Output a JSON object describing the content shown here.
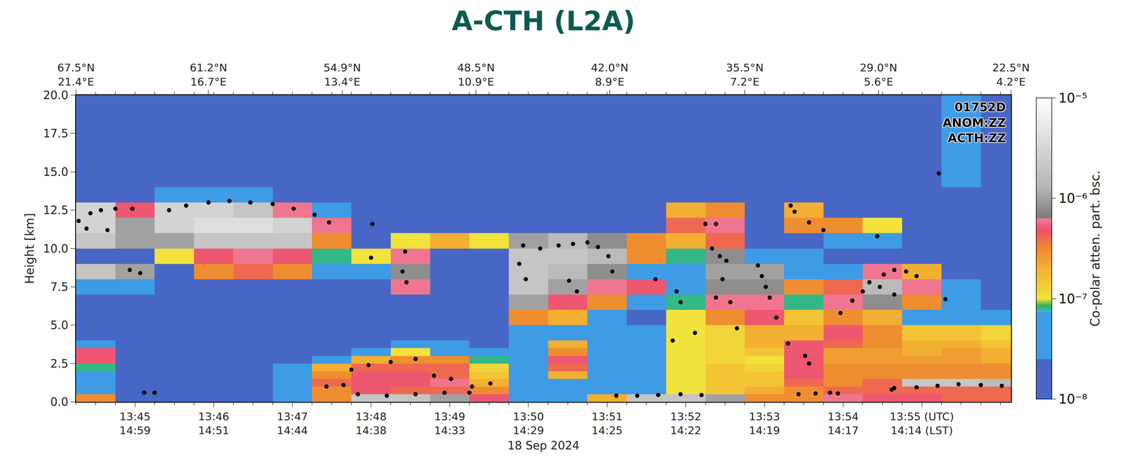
{
  "chart_data": {
    "type": "heatmap",
    "title": "A-CTH (L2A)",
    "annotations": [
      "01752D",
      "ANOM:ZZ",
      "ACTH:ZZ"
    ],
    "xlabel": "18 Sep 2024",
    "ylabel": "Height [km]",
    "xlim": [
      "2024-09-18 13:44:15",
      "2024-09-18 13:56:08"
    ],
    "xticks": [
      {
        "value": "2024-09-18 13:45:00",
        "label": "13:45\n14:59"
      },
      {
        "value": "2024-09-18 13:46:00",
        "label": "13:46\n14:51"
      },
      {
        "value": "2024-09-18 13:47:00",
        "label": "13:47\n14:44"
      },
      {
        "value": "2024-09-18 13:48:00",
        "label": "13:48\n14:38"
      },
      {
        "value": "2024-09-18 13:49:00",
        "label": "13:49\n14:33"
      },
      {
        "value": "2024-09-18 13:50:00",
        "label": "13:50\n14:29"
      },
      {
        "value": "2024-09-18 13:51:00",
        "label": "13:51\n14:25"
      },
      {
        "value": "2024-09-18 13:52:00",
        "label": "13:52\n14:22"
      },
      {
        "value": "2024-09-18 13:53:00",
        "label": "13:53\n14:19"
      },
      {
        "value": "2024-09-18 13:54:00",
        "label": "13:54\n14:17"
      },
      {
        "value": "2024-09-18 13:55:00",
        "label": "13:55 (UTC)\n14:14 (LST)"
      }
    ],
    "top_xticks": [
      {
        "value": "2024-09-18 13:44:15",
        "label": "67.5°N\n21.4°E"
      },
      {
        "value": "2024-09-18 13:45:56",
        "label": "61.2°N\n16.7°E"
      },
      {
        "value": "2024-09-18 13:47:38",
        "label": "54.9°N\n13.4°E"
      },
      {
        "value": "2024-09-18 13:49:20",
        "label": "48.5°N\n10.9°E"
      },
      {
        "value": "2024-09-18 13:51:02",
        "label": "42.0°N\n8.9°E"
      },
      {
        "value": "2024-09-18 13:52:45",
        "label": "35.5°N\n7.2°E"
      },
      {
        "value": "2024-09-18 13:54:27",
        "label": "29.0°N\n5.6°E"
      },
      {
        "value": "2024-09-18 13:56:08",
        "label": "22.5°N\n4.2°E"
      }
    ],
    "ylim": [
      0,
      20
    ],
    "yticks": [
      {
        "value": 0,
        "label": "0.0"
      },
      {
        "value": 2.5,
        "label": "2.5"
      },
      {
        "value": 5,
        "label": "5.0"
      },
      {
        "value": 7.5,
        "label": "7.5"
      },
      {
        "value": 10,
        "label": "10.0"
      },
      {
        "value": 12.5,
        "label": "12.5"
      },
      {
        "value": 15,
        "label": "15.0"
      },
      {
        "value": 17.5,
        "label": "17.5"
      },
      {
        "value": 20,
        "label": "20.0"
      }
    ],
    "cells": {
      "x_edges": [
        "2024-09-18 13:44:15",
        "2024-09-18 13:44:45",
        "2024-09-18 13:45:15",
        "2024-09-18 13:45:45",
        "2024-09-18 13:46:15",
        "2024-09-18 13:46:45",
        "2024-09-18 13:47:15",
        "2024-09-18 13:47:45",
        "2024-09-18 13:48:15",
        "2024-09-18 13:48:45",
        "2024-09-18 13:49:15",
        "2024-09-18 13:49:45",
        "2024-09-18 13:50:15",
        "2024-09-18 13:50:45",
        "2024-09-18 13:51:15",
        "2024-09-18 13:51:45",
        "2024-09-18 13:52:15",
        "2024-09-18 13:52:45",
        "2024-09-18 13:53:15",
        "2024-09-18 13:53:45",
        "2024-09-18 13:54:15",
        "2024-09-18 13:54:45",
        "2024-09-18 13:55:15",
        "2024-09-18 13:55:45",
        "2024-09-18 13:56:15"
      ],
      "y_edges": [
        0,
        0.5,
        1,
        1.5,
        2,
        2.5,
        3,
        3.5,
        4,
        5,
        6,
        7,
        8,
        9,
        10,
        11,
        12,
        13,
        14,
        20
      ],
      "z": [
        [
          3e-07,
          2e-08,
          2e-08,
          2e-08,
          2e-08,
          4e-08,
          3e-07,
          2e-06,
          2e-06,
          1e-06,
          5e-07,
          3e-08,
          3e-08,
          2e-07,
          2e-06,
          2e-06,
          1e-06,
          3e-07,
          3e-07,
          6e-07,
          5e-07,
          5e-07,
          4e-07,
          4e-07
        ],
        [
          4e-08,
          2e-08,
          2e-08,
          2e-08,
          2e-08,
          4e-08,
          3e-07,
          5e-07,
          4e-07,
          4e-07,
          3e-07,
          3e-08,
          3e-08,
          4e-08,
          6e-08,
          1e-07,
          1.5e-07,
          2e-07,
          3e-07,
          4e-07,
          4e-07,
          4e-07,
          4e-07,
          4e-07
        ],
        [
          3e-08,
          2e-08,
          2e-08,
          2e-08,
          2e-08,
          3e-08,
          4e-07,
          5e-07,
          5e-07,
          6e-07,
          2e-07,
          3e-08,
          3e-08,
          3e-08,
          5e-08,
          1e-07,
          1.5e-07,
          1.5e-07,
          4e-07,
          3e-07,
          4e-07,
          2e-06,
          2e-06,
          1.5e-06
        ],
        [
          3e-08,
          2e-08,
          2e-08,
          2e-08,
          2e-08,
          3e-08,
          3e-07,
          5e-07,
          5e-07,
          4e-07,
          1.5e-07,
          3e-08,
          2e-07,
          3e-08,
          4e-08,
          1e-07,
          1.5e-07,
          1.5e-07,
          5e-07,
          3e-07,
          3e-07,
          3e-07,
          3e-07,
          3e-07
        ],
        [
          8e-08,
          2e-08,
          2e-08,
          2e-08,
          2e-08,
          3e-08,
          2e-07,
          4e-07,
          4e-07,
          4e-07,
          1.2e-07,
          3e-08,
          4e-07,
          3e-08,
          3e-08,
          1e-07,
          1.5e-07,
          1.2e-07,
          5e-07,
          3e-07,
          3e-07,
          3e-07,
          3e-07,
          3e-07
        ],
        [
          5e-07,
          2e-08,
          2e-08,
          2e-08,
          2e-08,
          2e-08,
          3e-08,
          2e-07,
          3e-07,
          3e-07,
          8e-08,
          3e-08,
          5e-07,
          3e-08,
          3e-08,
          1e-07,
          1.2e-07,
          1e-07,
          5e-07,
          2.5e-07,
          2.5e-07,
          2.5e-07,
          2.5e-07,
          2e-07
        ],
        [
          5e-07,
          2e-08,
          2e-08,
          2e-08,
          2e-08,
          2e-08,
          2e-08,
          3e-08,
          1e-07,
          6e-08,
          3e-08,
          3e-08,
          3e-07,
          3e-08,
          3e-08,
          1e-07,
          1.2e-07,
          1.5e-07,
          5e-07,
          2.5e-07,
          2.5e-07,
          2e-07,
          2.5e-07,
          2e-07
        ],
        [
          3e-08,
          2e-08,
          2e-08,
          2e-08,
          2e-08,
          2e-08,
          2e-08,
          2e-08,
          3e-08,
          3e-08,
          2e-08,
          3e-08,
          2e-07,
          3e-08,
          3e-08,
          1e-07,
          1.2e-07,
          2e-07,
          5e-07,
          4e-07,
          3e-07,
          2e-07,
          2e-07,
          1.5e-07
        ],
        [
          2e-08,
          2e-08,
          2e-08,
          2e-08,
          2e-08,
          2e-08,
          2e-08,
          2e-08,
          2e-08,
          2e-08,
          2e-08,
          3e-08,
          5e-08,
          3e-08,
          4e-08,
          1e-07,
          1.2e-07,
          2e-07,
          2e-07,
          5e-07,
          3e-07,
          1.5e-07,
          1.5e-07,
          1.2e-07
        ],
        [
          2e-08,
          2e-08,
          2e-08,
          2e-08,
          2e-08,
          2e-08,
          2e-08,
          2e-08,
          2e-08,
          2e-08,
          2e-08,
          3e-07,
          2e-07,
          4e-08,
          2e-08,
          1e-07,
          3e-07,
          5e-07,
          1.5e-07,
          3e-07,
          2e-07,
          4e-08,
          3e-08,
          3e-08
        ],
        [
          2e-08,
          2e-08,
          2e-08,
          2e-08,
          2e-08,
          2e-08,
          2e-08,
          2e-08,
          2e-08,
          2e-08,
          2e-08,
          1e-06,
          5e-07,
          3e-07,
          4e-08,
          8e-08,
          6e-07,
          6e-07,
          8e-08,
          6e-07,
          8e-07,
          3e-07,
          3e-08,
          2e-08
        ],
        [
          3e-08,
          3e-08,
          2e-08,
          2e-08,
          2e-08,
          2e-08,
          2e-08,
          2e-08,
          6e-07,
          2e-08,
          2e-08,
          2e-06,
          1e-06,
          6e-07,
          5e-07,
          5e-08,
          8e-07,
          8e-07,
          3e-07,
          4e-07,
          1.5e-06,
          6e-07,
          3e-08,
          2e-08
        ],
        [
          2e-06,
          1e-06,
          2e-08,
          3e-07,
          4e-07,
          3e-07,
          3e-08,
          3e-08,
          8e-07,
          2e-08,
          2e-08,
          2e-06,
          1.5e-06,
          8e-07,
          3e-08,
          4e-08,
          1e-06,
          1e-06,
          4e-08,
          3e-08,
          6e-07,
          2e-07,
          2e-08,
          2e-08
        ],
        [
          2e-08,
          2e-08,
          1e-07,
          5e-07,
          6e-07,
          5e-07,
          8e-08,
          1e-07,
          6e-07,
          2e-08,
          2e-08,
          2e-06,
          2e-06,
          1.5e-06,
          3e-07,
          8e-08,
          8e-07,
          3e-08,
          3e-08,
          2e-08,
          2e-08,
          2e-08,
          2e-08,
          2e-08
        ],
        [
          2e-06,
          1e-06,
          1e-06,
          2e-06,
          2e-06,
          2e-06,
          3e-07,
          2e-08,
          1e-07,
          2e-07,
          1e-07,
          1e-06,
          1.5e-06,
          8e-07,
          3e-07,
          2e-07,
          4e-07,
          2e-08,
          2e-08,
          5e-08,
          6e-08,
          2e-08,
          2e-08,
          2e-08
        ],
        [
          3e-06,
          1e-06,
          3e-06,
          4e-06,
          4e-06,
          3e-06,
          6e-07,
          2e-08,
          2e-08,
          2e-08,
          2e-08,
          2e-08,
          2e-08,
          2e-08,
          2e-08,
          4e-07,
          6e-07,
          2e-08,
          3e-07,
          3e-07,
          1e-07,
          2e-08,
          2e-08,
          2e-08
        ],
        [
          3e-06,
          5e-07,
          3e-06,
          3e-06,
          2e-06,
          6e-07,
          5e-08,
          2e-08,
          2e-08,
          2e-08,
          2e-08,
          2e-08,
          2e-08,
          2e-08,
          2e-08,
          2e-07,
          3e-07,
          2e-08,
          2e-07,
          2e-08,
          2e-08,
          2e-08,
          2e-08,
          2e-08
        ],
        [
          2e-08,
          2e-08,
          3e-08,
          5e-08,
          3e-08,
          2e-08,
          2e-08,
          2e-08,
          2e-08,
          2e-08,
          2e-08,
          2e-08,
          2e-08,
          2e-08,
          2e-08,
          2e-08,
          2e-08,
          2e-08,
          2e-08,
          2e-08,
          2e-08,
          2e-08,
          2e-08,
          2e-08
        ],
        [
          2e-08,
          2e-08,
          2e-08,
          2e-08,
          2e-08,
          2e-08,
          2e-08,
          2e-08,
          2e-08,
          2e-08,
          2e-08,
          2e-08,
          2e-08,
          2e-08,
          2e-08,
          2e-08,
          2e-08,
          2e-08,
          2e-08,
          2e-08,
          2e-08,
          2e-08,
          3e-08,
          2e-08
        ]
      ]
    },
    "colorbar": {
      "title": "Co-polar atten. part. bsc.",
      "log": true,
      "range": [
        1e-08,
        1e-05
      ],
      "ticks": [
        {
          "value": 1e-08,
          "label": "10⁻⁸"
        },
        {
          "value": 1e-07,
          "label": "10⁻⁷"
        },
        {
          "value": 1e-06,
          "label": "10⁻⁶"
        },
        {
          "value": 1e-05,
          "label": "10⁻⁵"
        }
      ]
    },
    "cloud_top": {
      "color": "#000000",
      "marker": "circle",
      "x": [
        "2024-09-18 13:44:17",
        "2024-09-18 13:44:26",
        "2024-09-18 13:44:34",
        "2024-09-18 13:44:45",
        "2024-09-18 13:44:58",
        "2024-09-18 13:44:23",
        "2024-09-18 13:44:39",
        "2024-09-18 13:44:56",
        "2024-09-18 13:45:04",
        "2024-09-18 13:45:07",
        "2024-09-18 13:45:15",
        "2024-09-18 13:45:26",
        "2024-09-18 13:45:39",
        "2024-09-18 13:45:56",
        "2024-09-18 13:46:12",
        "2024-09-18 13:46:28",
        "2024-09-18 13:46:45",
        "2024-09-18 13:47:01",
        "2024-09-18 13:47:17",
        "2024-09-18 13:47:28",
        "2024-09-18 13:48:01",
        "2024-09-18 13:48:00",
        "2024-09-18 13:48:26",
        "2024-09-18 13:48:24",
        "2024-09-18 13:48:27",
        "2024-09-18 13:47:26",
        "2024-09-18 13:47:39",
        "2024-09-18 13:47:45",
        "2024-09-18 13:47:58",
        "2024-09-18 13:48:15",
        "2024-09-18 13:48:34",
        "2024-09-18 13:48:48",
        "2024-09-18 13:49:01",
        "2024-09-18 13:49:17",
        "2024-09-18 13:49:31",
        "2024-09-18 13:47:50",
        "2024-09-18 13:48:12",
        "2024-09-18 13:48:34",
        "2024-09-18 13:48:56",
        "2024-09-18 13:49:15",
        "2024-09-18 13:49:56",
        "2024-09-18 13:50:09",
        "2024-09-18 13:50:23",
        "2024-09-18 13:50:34",
        "2024-09-18 13:50:45",
        "2024-09-18 13:50:53",
        "2024-09-18 13:51:01",
        "2024-09-18 13:49:53",
        "2024-09-18 13:49:58",
        "2024-09-18 13:50:31",
        "2024-09-18 13:50:37",
        "2024-09-18 13:51:04",
        "2024-09-18 13:51:07",
        "2024-09-18 13:51:23",
        "2024-09-18 13:51:39",
        "2024-09-18 13:51:56",
        "2024-09-18 13:52:12",
        "2024-09-18 13:51:37",
        "2024-09-18 13:51:53",
        "2024-09-18 13:51:56",
        "2024-09-18 13:51:50",
        "2024-09-18 13:52:07",
        "2024-09-18 13:52:15",
        "2024-09-18 13:52:23",
        "2024-09-18 13:52:20",
        "2024-09-18 13:52:26",
        "2024-09-18 13:52:31",
        "2024-09-18 13:52:28",
        "2024-09-18 13:52:34",
        "2024-09-18 13:52:23",
        "2024-09-18 13:52:39",
        "2024-09-18 13:52:55",
        "2024-09-18 13:52:58",
        "2024-09-18 13:53:01",
        "2024-09-18 13:53:04",
        "2024-09-18 13:53:09",
        "2024-09-18 13:53:18",
        "2024-09-18 13:53:31",
        "2024-09-18 13:53:34",
        "2024-09-18 13:53:26",
        "2024-09-18 13:53:39",
        "2024-09-18 13:53:50",
        "2024-09-18 13:53:56",
        "2024-09-18 13:53:20",
        "2024-09-18 13:53:23",
        "2024-09-18 13:53:34",
        "2024-09-18 13:53:45",
        "2024-09-18 13:54:26",
        "2024-09-18 13:55:13",
        "2024-09-18 13:53:58",
        "2024-09-18 13:54:07",
        "2024-09-18 13:54:15",
        "2024-09-18 13:54:20",
        "2024-09-18 13:54:31",
        "2024-09-18 13:54:39",
        "2024-09-18 13:54:48",
        "2024-09-18 13:54:56",
        "2024-09-18 13:54:28",
        "2024-09-18 13:54:39",
        "2024-09-18 13:55:18",
        "2024-09-18 13:54:37",
        "2024-09-18 13:54:39",
        "2024-09-18 13:54:56",
        "2024-09-18 13:55:12",
        "2024-09-18 13:55:28",
        "2024-09-18 13:55:45",
        "2024-09-18 13:56:01"
      ],
      "values": [
        11.8,
        12.3,
        12.5,
        12.6,
        12.6,
        11.3,
        11.2,
        8.6,
        8.4,
        0.6,
        0.6,
        12.5,
        12.8,
        13.0,
        13.1,
        13.0,
        12.9,
        12.6,
        12.2,
        11.7,
        11.6,
        9.4,
        9.8,
        8.5,
        7.8,
        1.0,
        1.1,
        2.1,
        2.4,
        2.6,
        2.8,
        1.7,
        1.5,
        1.0,
        1.2,
        0.5,
        0.4,
        0.5,
        0.6,
        0.6,
        10.2,
        10.0,
        10.2,
        10.3,
        10.4,
        10.1,
        9.5,
        9.0,
        8.0,
        7.9,
        7.2,
        8.5,
        0.4,
        0.4,
        0.45,
        0.5,
        0.45,
        8.0,
        7.2,
        6.5,
        4.0,
        4.5,
        11.6,
        11.6,
        10.0,
        9.5,
        9.2,
        8.0,
        6.5,
        6.8,
        4.8,
        8.9,
        8.2,
        7.5,
        6.8,
        5.5,
        3.8,
        3.0,
        2.5,
        0.5,
        0.55,
        0.6,
        0.55,
        12.8,
        12.4,
        11.7,
        11.2,
        10.8,
        14.9,
        5.8,
        6.6,
        7.2,
        7.8,
        8.3,
        8.6,
        8.5,
        8.2,
        7.5,
        7.0,
        6.7,
        0.8,
        0.9,
        0.95,
        1.05,
        1.15,
        1.1,
        1.05
      ]
    }
  }
}
